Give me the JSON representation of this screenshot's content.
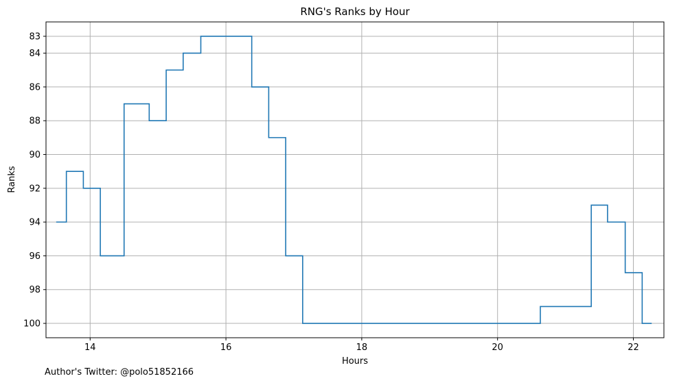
{
  "chart_data": {
    "type": "line",
    "step": "post",
    "title": "RNG's Ranks by Hour",
    "xlabel": "Hours",
    "ylabel": "Ranks",
    "xlim": [
      13.35,
      22.45
    ],
    "ylim": [
      100.85,
      82.15
    ],
    "y_inverted": true,
    "grid": true,
    "color": "#1f77b4",
    "xticks": [
      14,
      16,
      18,
      20,
      22
    ],
    "yticks": [
      83,
      84,
      86,
      88,
      90,
      92,
      94,
      96,
      98,
      100
    ],
    "x": [
      13.5,
      13.65,
      13.9,
      14.15,
      14.5,
      14.87,
      15.12,
      15.37,
      15.63,
      16.38,
      16.63,
      16.88,
      17.13,
      20.63,
      21.38,
      21.62,
      21.88,
      22.13,
      22.27
    ],
    "y": [
      94,
      91,
      92,
      96,
      87,
      88,
      85,
      84,
      83,
      86,
      89,
      96,
      100,
      99,
      93,
      94,
      97,
      100,
      100
    ]
  },
  "footnote": "Author's Twitter: @polo51852166"
}
